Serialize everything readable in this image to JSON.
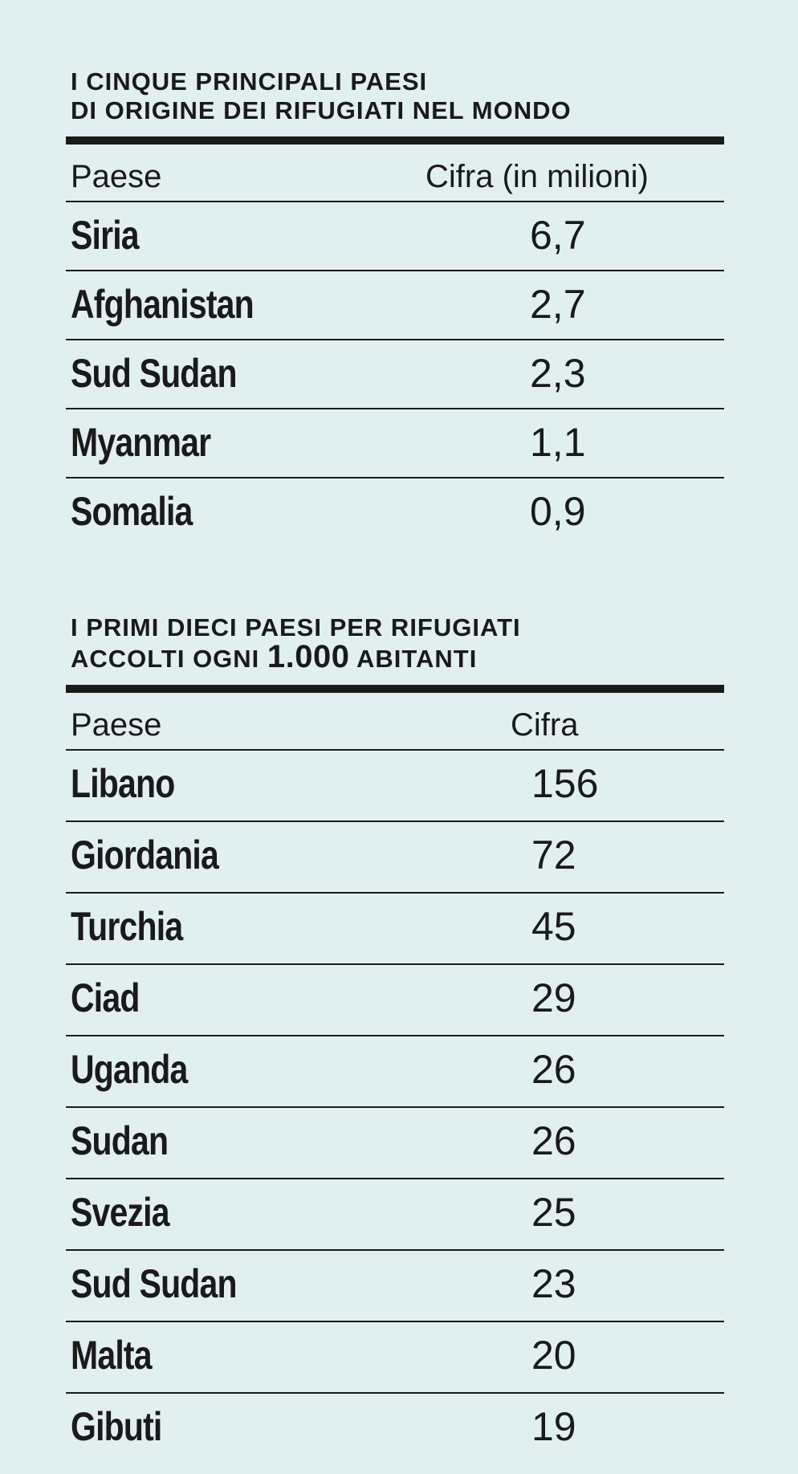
{
  "chart_data": [
    {
      "type": "table",
      "title_line1": "I CINQUE PRINCIPALI PAESI",
      "title_line2": "DI ORIGINE DEI RIFUGIATI NEL MONDO",
      "headers": [
        "Paese",
        "Cifra (in milioni)"
      ],
      "rows": [
        {
          "paese": "Siria",
          "cifra": "6,7"
        },
        {
          "paese": "Afghanistan",
          "cifra": "2,7"
        },
        {
          "paese": "Sud Sudan",
          "cifra": "2,3"
        },
        {
          "paese": "Myanmar",
          "cifra": "1,1"
        },
        {
          "paese": "Somalia",
          "cifra": "0,9"
        }
      ]
    },
    {
      "type": "table",
      "title_line1": "I PRIMI DIECI PAESI PER RIFUGIATI",
      "title_line2_pre": "ACCOLTI OGNI",
      "title_line2_num": "1.000",
      "title_line2_post": "ABITANTI",
      "headers": [
        "Paese",
        "Cifra"
      ],
      "rows": [
        {
          "paese": "Libano",
          "cifra": "156"
        },
        {
          "paese": "Giordania",
          "cifra": "72"
        },
        {
          "paese": "Turchia",
          "cifra": "45"
        },
        {
          "paese": "Ciad",
          "cifra": "29"
        },
        {
          "paese": "Uganda",
          "cifra": "26"
        },
        {
          "paese": "Sudan",
          "cifra": "26"
        },
        {
          "paese": "Svezia",
          "cifra": "25"
        },
        {
          "paese": "Sud Sudan",
          "cifra": "23"
        },
        {
          "paese": "Malta",
          "cifra": "20"
        },
        {
          "paese": "Gibuti",
          "cifra": "19"
        }
      ]
    }
  ],
  "colors": {
    "background": "#e1eff0",
    "ink": "#1a1a1a"
  }
}
